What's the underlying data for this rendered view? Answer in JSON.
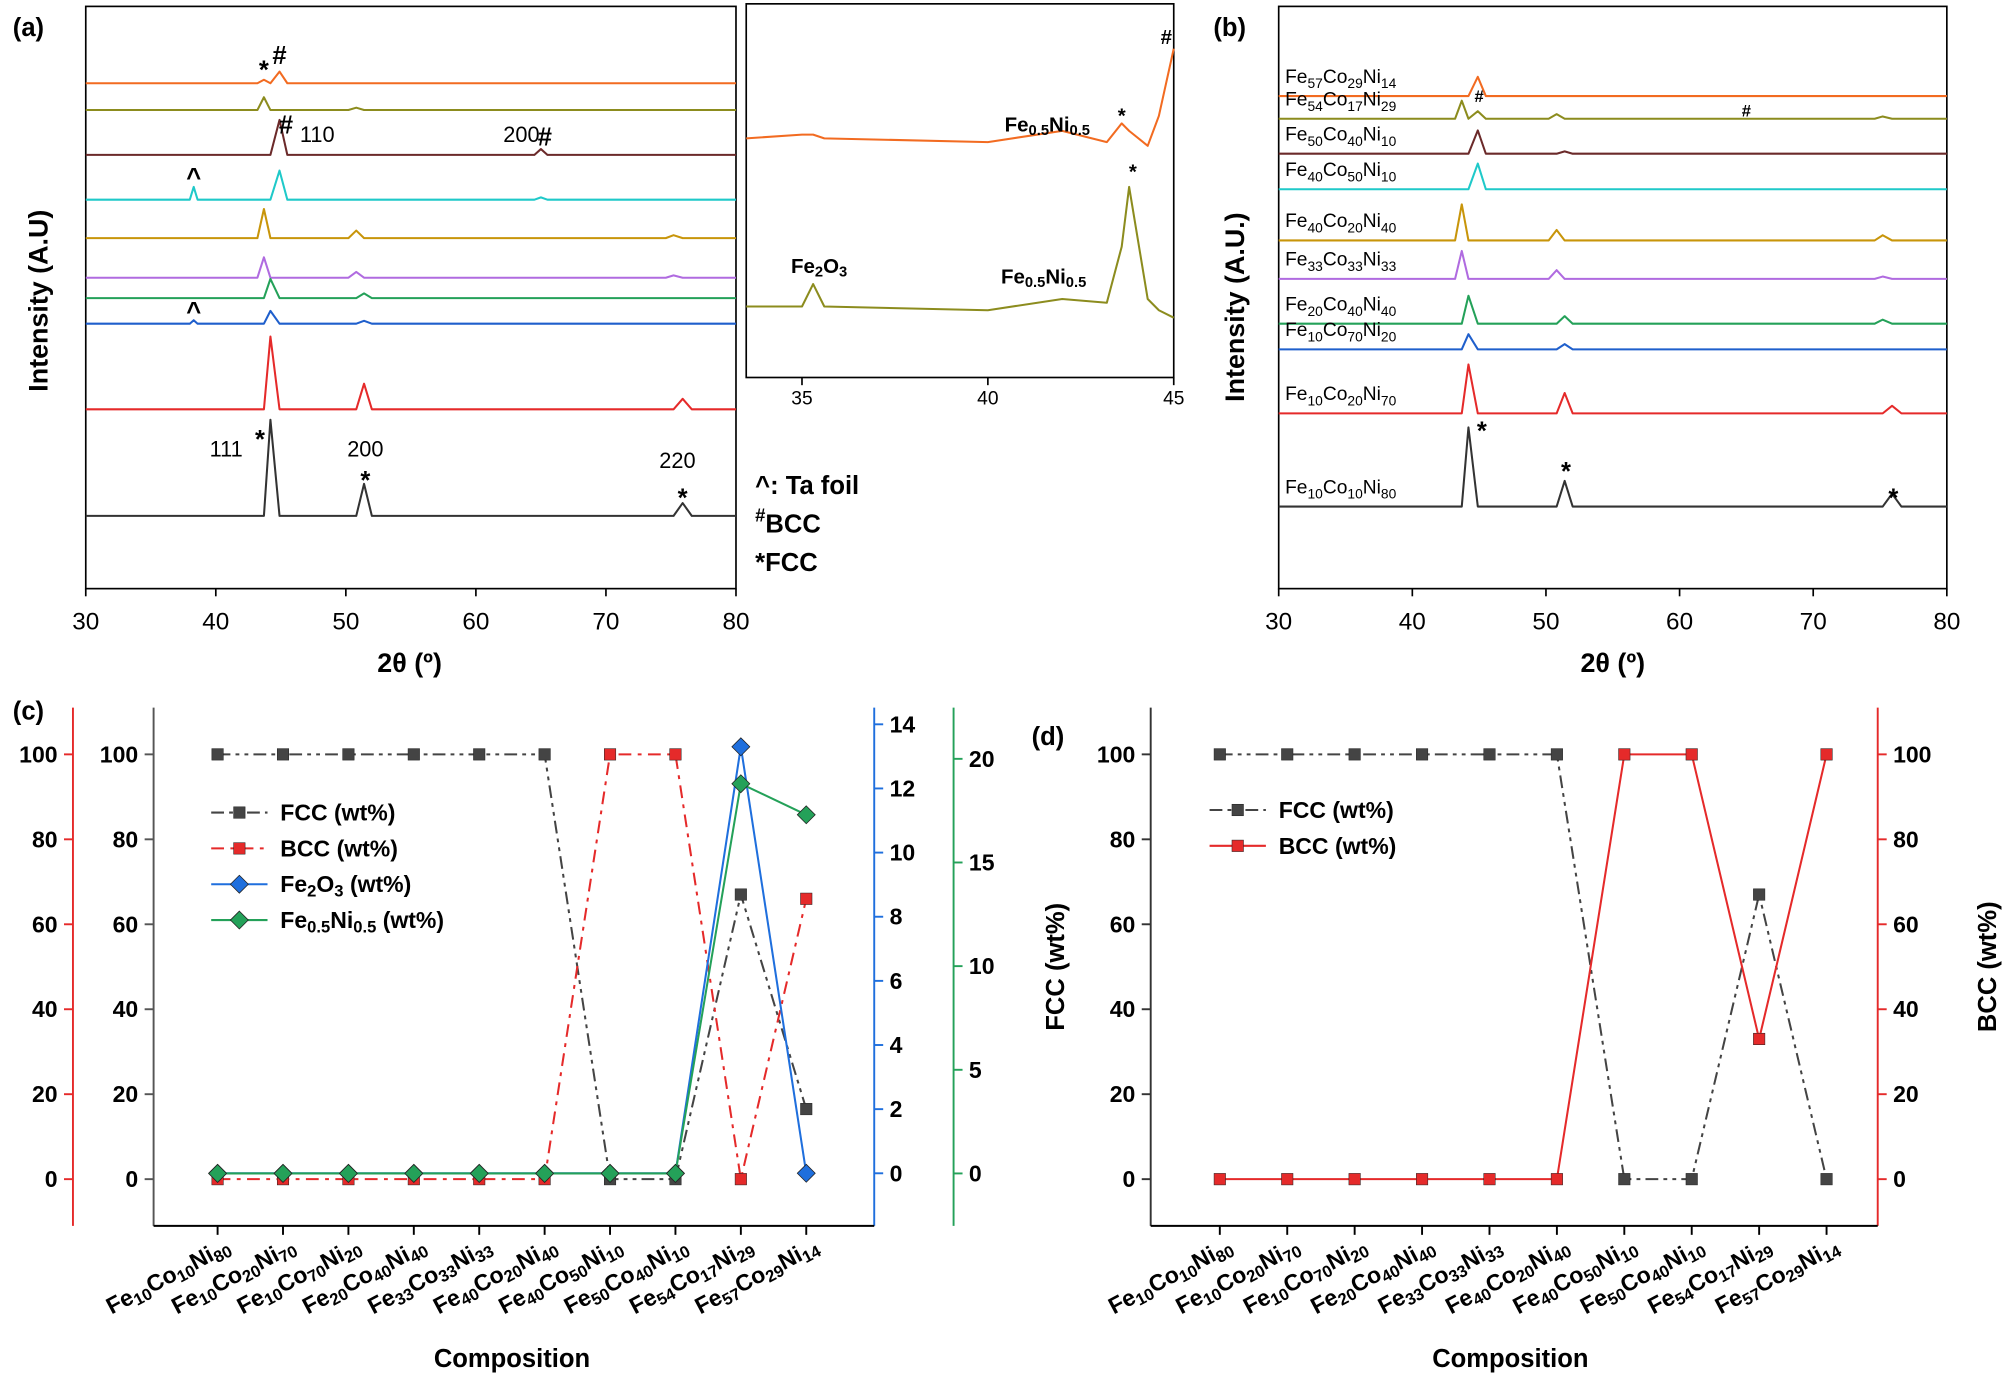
{
  "chart_data": [
    {
      "type": "line",
      "title": "(a)",
      "xlabel": "2θ (º)",
      "ylabel": "Intensity (A.U)",
      "xlim": [
        30,
        80
      ],
      "xticks": [
        30,
        40,
        50,
        60,
        70,
        80
      ],
      "ylim": [
        0,
        100
      ],
      "x": [
        30,
        38,
        38.3,
        38.6,
        43.2,
        43.7,
        44.2,
        44.9,
        45.5,
        50.2,
        50.8,
        51.4,
        52,
        64.5,
        65,
        65.5,
        74.6,
        75.2,
        75.9,
        76.6,
        80
      ],
      "series": [
        {
          "color": "#f26b21",
          "values": [
            86.8,
            86.8,
            86.8,
            86.8,
            86.8,
            87.4,
            86.8,
            88.8,
            86.8,
            86.8,
            86.8,
            86.8,
            86.8,
            86.8,
            86.8,
            86.8,
            86.8,
            86.8,
            86.8,
            86.8,
            86.8
          ]
        },
        {
          "color": "#8c8c1e",
          "values": [
            82.2,
            82.2,
            82.2,
            82.2,
            82.2,
            84.4,
            82.2,
            82.2,
            82.2,
            82.2,
            82.6,
            82.2,
            82.2,
            82.2,
            82.2,
            82.2,
            82.2,
            82.2,
            82.2,
            82.2,
            82.2
          ]
        },
        {
          "color": "#6b2a2a",
          "values": [
            74.5,
            74.5,
            74.5,
            74.5,
            74.5,
            74.5,
            74.5,
            80.5,
            74.5,
            74.5,
            74.5,
            74.5,
            74.5,
            74.5,
            75.5,
            74.5,
            74.5,
            74.5,
            74.5,
            74.5,
            74.5
          ]
        },
        {
          "color": "#1fc9c9",
          "values": [
            66.8,
            66.8,
            69,
            66.8,
            66.8,
            66.8,
            66.8,
            71.8,
            66.8,
            66.8,
            66.8,
            66.8,
            66.8,
            66.8,
            67.2,
            66.8,
            66.8,
            66.8,
            66.8,
            66.8,
            66.8
          ]
        },
        {
          "color": "#c8950a",
          "values": [
            60.2,
            60.2,
            60.2,
            60.2,
            60.2,
            65.2,
            60.2,
            60.2,
            60.2,
            60.2,
            61.5,
            60.2,
            60.2,
            60.2,
            60.2,
            60.2,
            60.2,
            60.7,
            60.2,
            60.2,
            60.2
          ]
        },
        {
          "color": "#b06be0",
          "values": [
            53.4,
            53.4,
            53.4,
            53.4,
            53.4,
            56.9,
            53.4,
            53.4,
            53.4,
            53.4,
            54.4,
            53.4,
            53.4,
            53.4,
            53.4,
            53.4,
            53.4,
            53.8,
            53.4,
            53.4,
            53.4
          ]
        },
        {
          "color": "#24a159",
          "values": [
            49.9,
            49.9,
            49.9,
            49.9,
            49.9,
            49.9,
            53.2,
            49.9,
            49.9,
            49.9,
            49.9,
            50.7,
            49.9,
            49.9,
            49.9,
            49.9,
            49.9,
            49.9,
            49.9,
            49.9,
            49.9
          ]
        },
        {
          "color": "#1f5fcc",
          "values": [
            45.5,
            45.5,
            46.1,
            45.5,
            45.5,
            45.5,
            47.7,
            45.5,
            45.5,
            45.5,
            45.5,
            46,
            45.5,
            45.5,
            45.5,
            45.5,
            45.5,
            45.5,
            45.5,
            45.5,
            45.5
          ]
        },
        {
          "color": "#e52a2a",
          "values": [
            30.8,
            30.8,
            30.8,
            30.8,
            30.8,
            30.8,
            43.3,
            30.8,
            30.8,
            30.8,
            30.8,
            35.2,
            30.8,
            30.8,
            30.8,
            30.8,
            30.8,
            30.8,
            32.6,
            30.8,
            30.8
          ]
        },
        {
          "color": "#333333",
          "values": [
            12.5,
            12.5,
            12.5,
            12.5,
            12.5,
            12.5,
            29,
            12.5,
            12.5,
            12.5,
            12.5,
            18,
            12.5,
            12.5,
            12.5,
            12.5,
            12.5,
            12.5,
            14.7,
            12.5,
            12.5
          ]
        }
      ],
      "annotations": [
        {
          "text": "*",
          "color": "#000000"
        },
        {
          "text": "#",
          "color": "#1a1ad6"
        },
        {
          "text": "#",
          "color": "#1a1ad6"
        },
        {
          "text": "110",
          "color": "#1a1ad6"
        },
        {
          "text": "200",
          "color": "#1a1ad6"
        },
        {
          "text": "#",
          "color": "#1a1ad6"
        },
        {
          "text": "^",
          "color": "#000000"
        },
        {
          "text": "^",
          "color": "#000000"
        },
        {
          "text": "111",
          "color": "#000000"
        },
        {
          "text": "*",
          "color": "#000000"
        },
        {
          "text": "200",
          "color": "#000000"
        },
        {
          "text": "*",
          "color": "#000000"
        },
        {
          "text": "220",
          "color": "#000000"
        },
        {
          "text": "*",
          "color": "#000000"
        }
      ],
      "notes": [
        {
          "text": "^: Ta foil",
          "color": "#000000"
        },
        {
          "text": "#BCC",
          "color": "#1a1ad6"
        },
        {
          "text": "*FCC",
          "color": "#000000"
        }
      ]
    },
    {
      "type": "line",
      "xlim": [
        33.5,
        45
      ],
      "xticks": [
        35,
        40,
        45
      ],
      "ylim": [
        0,
        100
      ],
      "x": [
        33.5,
        35,
        35.3,
        35.6,
        40,
        42,
        43.2,
        43.6,
        43.8,
        44.3,
        44.6,
        45
      ],
      "series": [
        {
          "color": "#f26b21",
          "values": [
            64,
            65,
            65,
            64,
            63,
            66,
            63,
            68,
            66,
            62,
            70,
            88
          ]
        },
        {
          "color": "#8c8c1e",
          "values": [
            19,
            19,
            25,
            19,
            18,
            21,
            20,
            35,
            51,
            21,
            18,
            16
          ]
        }
      ],
      "annotations": [
        {
          "text": "#",
          "color": "#1a1ad6"
        },
        {
          "text": "Fe0.5Ni0.5",
          "color": "#000000"
        },
        {
          "text": "*",
          "color": "#000000"
        },
        {
          "text": "*",
          "color": "#000000"
        },
        {
          "text": "Fe2O3",
          "color": "#000000"
        },
        {
          "text": "Fe0.5Ni0.5",
          "color": "#000000"
        }
      ]
    },
    {
      "type": "line",
      "title": "(b)",
      "xlabel": "2θ (º)",
      "ylabel": "Intensity (A.U.)",
      "xlim": [
        30,
        80
      ],
      "xticks": [
        30,
        40,
        50,
        60,
        70,
        80
      ],
      "ylim": [
        0,
        100
      ],
      "x": [
        30,
        38,
        38.3,
        38.6,
        43.2,
        43.7,
        44.2,
        44.9,
        45.5,
        50.2,
        50.8,
        51.4,
        52,
        64.5,
        65,
        65.5,
        74.6,
        75.2,
        75.9,
        76.6,
        80
      ],
      "series": [
        {
          "name": "Fe57Co29Ni14",
          "color": "#f26b21",
          "values": [
            84.6,
            84.6,
            84.6,
            84.6,
            84.6,
            84.6,
            84.6,
            87.9,
            84.6,
            84.6,
            84.6,
            84.6,
            84.6,
            84.6,
            84.6,
            84.6,
            84.6,
            84.6,
            84.6,
            84.6,
            84.6
          ]
        },
        {
          "name": "Fe54Co17Ni29",
          "color": "#8c8c1e",
          "values": [
            80.7,
            80.7,
            80.7,
            80.7,
            80.7,
            83.8,
            80.7,
            82,
            80.7,
            80.7,
            81.5,
            80.7,
            80.7,
            80.7,
            80.7,
            80.7,
            80.7,
            81.1,
            80.7,
            80.7,
            80.7
          ]
        },
        {
          "name": "Fe50Co40Ni10",
          "color": "#6b2a2a",
          "values": [
            74.7,
            74.7,
            74.7,
            74.7,
            74.7,
            74.7,
            74.7,
            78.7,
            74.7,
            74.7,
            74.7,
            75.1,
            74.7,
            74.7,
            74.7,
            74.7,
            74.7,
            74.7,
            74.7,
            74.7,
            74.7
          ]
        },
        {
          "name": "Fe40Co50Ni10",
          "color": "#1fc9c9",
          "values": [
            68.6,
            68.6,
            68.6,
            68.6,
            68.6,
            68.6,
            68.6,
            73,
            68.6,
            68.6,
            68.6,
            68.6,
            68.6,
            68.6,
            68.6,
            68.6,
            68.6,
            68.6,
            68.6,
            68.6,
            68.6
          ]
        },
        {
          "name": "Fe40Co20Ni40",
          "color": "#c8950a",
          "values": [
            59.8,
            59.8,
            59.8,
            59.8,
            59.8,
            66,
            59.8,
            59.8,
            59.8,
            59.8,
            61.6,
            59.8,
            59.8,
            59.8,
            59.8,
            59.8,
            59.8,
            60.7,
            59.8,
            59.8,
            59.8
          ]
        },
        {
          "name": "Fe33Co33Ni33",
          "color": "#b06be0",
          "values": [
            53.2,
            53.2,
            53.2,
            53.2,
            53.2,
            58,
            53.2,
            53.2,
            53.2,
            53.2,
            54.7,
            53.2,
            53.2,
            53.2,
            53.2,
            53.2,
            53.2,
            53.6,
            53.2,
            53.2,
            53.2
          ]
        },
        {
          "name": "Fe20Co40Ni40",
          "color": "#24a159",
          "values": [
            45.5,
            45.5,
            45.5,
            45.5,
            45.5,
            45.5,
            50.3,
            45.5,
            45.5,
            45.5,
            45.5,
            46.8,
            45.5,
            45.5,
            45.5,
            45.5,
            45.5,
            46.2,
            45.5,
            45.5,
            45.5
          ]
        },
        {
          "name": "Fe10Co70Ni20",
          "color": "#1f5fcc",
          "values": [
            41.1,
            41.1,
            41.1,
            41.1,
            41.1,
            41.1,
            43.7,
            41.1,
            41.1,
            41.1,
            41.1,
            42,
            41.1,
            41.1,
            41.1,
            41.1,
            41.1,
            41.1,
            41.1,
            41.1,
            41.1
          ]
        },
        {
          "name": "Fe10Co20Ni70",
          "color": "#e52a2a",
          "values": [
            30.1,
            30.1,
            30.1,
            30.1,
            30.1,
            30.1,
            38.5,
            30.1,
            30.1,
            30.1,
            30.1,
            33.6,
            30.1,
            30.1,
            30.1,
            30.1,
            30.1,
            30.1,
            31.4,
            30.1,
            30.1
          ]
        },
        {
          "name": "Fe10Co10Ni80",
          "color": "#333333",
          "values": [
            14.1,
            14.1,
            14.1,
            14.1,
            14.1,
            14.1,
            27.7,
            14.1,
            14.1,
            14.1,
            14.1,
            18.5,
            14.1,
            14.1,
            14.1,
            14.1,
            14.1,
            14.1,
            16.3,
            14.1,
            14.1
          ]
        }
      ],
      "annotations": [
        {
          "text": "#",
          "color": "#1a1ad6"
        },
        {
          "text": "#",
          "color": "#1a1ad6"
        },
        {
          "text": "*",
          "color": "#000000"
        },
        {
          "text": "*",
          "color": "#000000"
        },
        {
          "text": "*",
          "color": "#000000"
        }
      ]
    },
    {
      "type": "line",
      "title": "(c)",
      "xlabel": "Composition",
      "categories": [
        "Fe10Co10Ni80",
        "Fe10Co20Ni70",
        "Fe10Co70Ni20",
        "Fe20Co40Ni40",
        "Fe33Co33Ni33",
        "Fe40Co20Ni40",
        "Fe40Co50Ni10",
        "Fe50Co40Ni10",
        "Fe54Co17Ni29",
        "Fe57Co29Ni14"
      ],
      "ylim": [
        -11,
        111
      ],
      "yticks": [
        0,
        20,
        40,
        60,
        80,
        100
      ],
      "y_color": "#555555",
      "y2lim": [
        -11,
        111
      ],
      "y2ticks": [
        0,
        20,
        40,
        60,
        80,
        100
      ],
      "y2_color": "#e52a2a",
      "y3lim": [
        -1.64,
        14.52
      ],
      "y3ticks": [
        0,
        2,
        4,
        6,
        8,
        10,
        12,
        14
      ],
      "y3_color": "#1f6fdd",
      "y4lim": [
        -2.53,
        22.47
      ],
      "y4ticks": [
        0,
        5,
        10,
        15,
        20
      ],
      "y4_color": "#24a159",
      "series": [
        {
          "name": "FCC (wt%)",
          "color": "#444444",
          "line_style": "dash-dot-dot",
          "marker": "square",
          "values": [
            100,
            100,
            100,
            100,
            100,
            100,
            0,
            0,
            67,
            16.5
          ]
        },
        {
          "name": "BCC (wt%)",
          "color": "#e52a2a",
          "line_style": "dash-dot",
          "marker": "square",
          "axis": "y2",
          "values": [
            0,
            0,
            0,
            0,
            0,
            0,
            100,
            100,
            0,
            66
          ]
        },
        {
          "name": "Fe2O3 (wt%)",
          "color": "#1f6fdd",
          "line_style": "solid",
          "marker": "diamond",
          "axis": "y3",
          "values": [
            0,
            0,
            0,
            0,
            0,
            0,
            0,
            0,
            13.3,
            0
          ]
        },
        {
          "name": "Fe0.5Ni0.5 (wt%)",
          "color": "#24a159",
          "line_style": "solid",
          "marker": "diamond",
          "axis": "y4",
          "values": [
            0,
            0,
            0,
            0,
            0,
            0,
            0,
            0,
            18.8,
            17.3
          ]
        }
      ]
    },
    {
      "type": "line",
      "title": "(d)",
      "xlabel": "Composition",
      "categories": [
        "Fe10Co10Ni80",
        "Fe10Co20Ni70",
        "Fe10Co70Ni20",
        "Fe20Co40Ni40",
        "Fe33Co33Ni33",
        "Fe40Co20Ni40",
        "Fe40Co50Ni10",
        "Fe50Co40Ni10",
        "Fe54Co17Ni29",
        "Fe57Co29Ni14"
      ],
      "ylim": [
        -11,
        111
      ],
      "yticks": [
        0,
        20,
        40,
        60,
        80,
        100
      ],
      "ylabel": "FCC (wt%)",
      "y_color": "#333333",
      "y2lim": [
        -11,
        111
      ],
      "y2ticks": [
        0,
        20,
        40,
        60,
        80,
        100
      ],
      "y2label": "BCC (wt%)",
      "y2_color": "#e52a2a",
      "series": [
        {
          "name": "FCC (wt%)",
          "color": "#444444",
          "line_style": "dash-dot-dot",
          "marker": "square",
          "values": [
            100,
            100,
            100,
            100,
            100,
            100,
            0,
            0,
            67,
            0
          ]
        },
        {
          "name": "BCC (wt%)",
          "color": "#e52a2a",
          "line_style": "solid",
          "marker": "square",
          "axis": "y2",
          "values": [
            0,
            0,
            0,
            0,
            0,
            0,
            100,
            100,
            33,
            100
          ]
        }
      ]
    }
  ]
}
